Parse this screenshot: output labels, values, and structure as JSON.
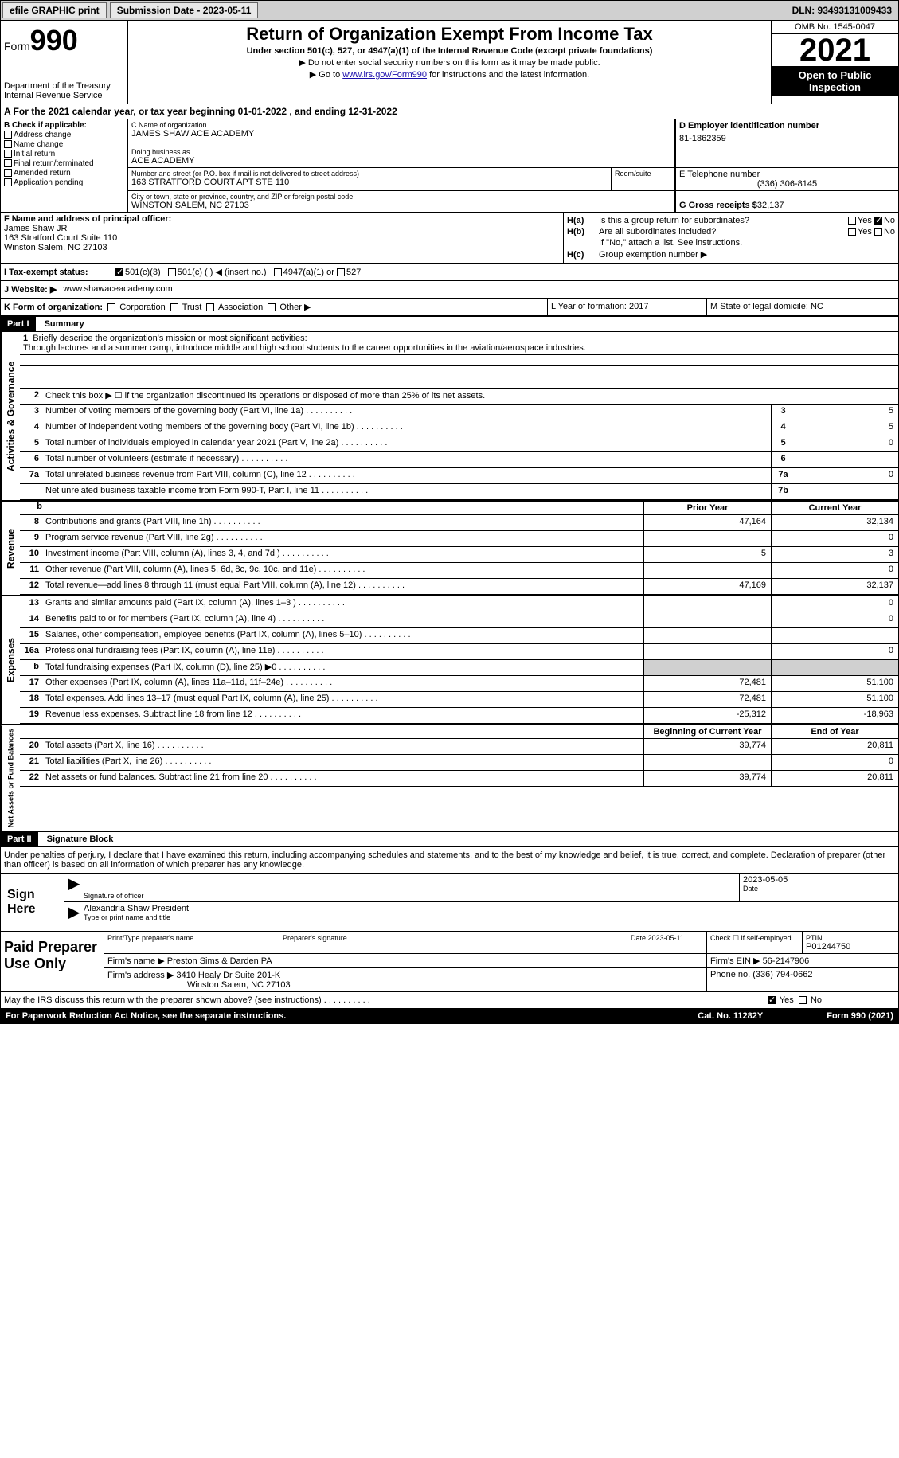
{
  "topbar": {
    "efile": "efile GRAPHIC print",
    "submission": "Submission Date - 2023-05-11",
    "dln": "DLN: 93493131009433"
  },
  "header": {
    "form_label": "Form",
    "form_num": "990",
    "title": "Return of Organization Exempt From Income Tax",
    "sub1": "Under section 501(c), 527, or 4947(a)(1) of the Internal Revenue Code (except private foundations)",
    "sub2": "▶ Do not enter social security numbers on this form as it may be made public.",
    "sub3_pre": "▶ Go to ",
    "sub3_link": "www.irs.gov/Form990",
    "sub3_post": " for instructions and the latest information.",
    "dept": "Department of the Treasury Internal Revenue Service",
    "omb": "OMB No. 1545-0047",
    "year": "2021",
    "inspection": "Open to Public Inspection"
  },
  "section_a": "A  For the 2021 calendar year, or tax year beginning 01-01-2022   , and ending 12-31-2022",
  "col_b": {
    "label": "B Check if applicable:",
    "items": [
      "Address change",
      "Name change",
      "Initial return",
      "Final return/terminated",
      "Amended return",
      "Application pending"
    ]
  },
  "col_c": {
    "name_lbl": "C Name of organization",
    "name": "JAMES SHAW ACE ACADEMY",
    "dba_lbl": "Doing business as",
    "dba": "ACE ACADEMY",
    "street_lbl": "Number and street (or P.O. box if mail is not delivered to street address)",
    "street": "163 STRATFORD COURT APT STE 110",
    "room_lbl": "Room/suite",
    "city_lbl": "City or town, state or province, country, and ZIP or foreign postal code",
    "city": "WINSTON SALEM, NC  27103"
  },
  "col_d": {
    "ein_lbl": "D Employer identification number",
    "ein": "81-1862359",
    "phone_lbl": "E Telephone number",
    "phone": "(336) 306-8145",
    "gross_lbl": "G Gross receipts $",
    "gross": " 32,137"
  },
  "col_f": {
    "label": "F  Name and address of principal officer:",
    "name": "James Shaw JR",
    "addr1": "163 Stratford Court Suite 110",
    "addr2": "Winston Salem, NC  27103"
  },
  "col_h": {
    "ha": "Is this a group return for subordinates?",
    "hb": "Are all subordinates included?",
    "hb_note": "If \"No,\" attach a list. See instructions.",
    "hc": "Group exemption number ▶"
  },
  "tax_exempt": {
    "label": "I   Tax-exempt status:",
    "opt1": "501(c)(3)",
    "opt2": "501(c) (  ) ◀ (insert no.)",
    "opt3": "4947(a)(1) or",
    "opt4": "527"
  },
  "website": {
    "label": "J  Website: ▶",
    "value": "www.shawaceacademy.com"
  },
  "k_row": {
    "k": "K Form of organization:",
    "opts": [
      "Corporation",
      "Trust",
      "Association",
      "Other ▶"
    ],
    "l": "L Year of formation: 2017",
    "m": "M State of legal domicile: NC"
  },
  "part1": {
    "header": "Part I",
    "title": "Summary",
    "q1": "Briefly describe the organization's mission or most significant activities:",
    "mission": "Through lectures and a summer camp, introduce middle and high school students to the career opportunities in the aviation/aerospace industries.",
    "q2": "Check this box ▶ ☐  if the organization discontinued its operations or disposed of more than 25% of its net assets.",
    "activities_label": "Activities & Governance",
    "revenue_label": "Revenue",
    "expenses_label": "Expenses",
    "netassets_label": "Net Assets or Fund Balances",
    "prior_year": "Prior Year",
    "current_year": "Current Year",
    "begin_year": "Beginning of Current Year",
    "end_year": "End of Year",
    "lines_gov": [
      {
        "n": "3",
        "d": "Number of voting members of the governing body (Part VI, line 1a)",
        "box": "3",
        "v": "5"
      },
      {
        "n": "4",
        "d": "Number of independent voting members of the governing body (Part VI, line 1b)",
        "box": "4",
        "v": "5"
      },
      {
        "n": "5",
        "d": "Total number of individuals employed in calendar year 2021 (Part V, line 2a)",
        "box": "5",
        "v": "0"
      },
      {
        "n": "6",
        "d": "Total number of volunteers (estimate if necessary)",
        "box": "6",
        "v": ""
      },
      {
        "n": "7a",
        "d": "Total unrelated business revenue from Part VIII, column (C), line 12",
        "box": "7a",
        "v": "0"
      },
      {
        "n": "",
        "d": "Net unrelated business taxable income from Form 990-T, Part I, line 11",
        "box": "7b",
        "v": ""
      }
    ],
    "lines_rev": [
      {
        "n": "8",
        "d": "Contributions and grants (Part VIII, line 1h)",
        "p": "47,164",
        "c": "32,134"
      },
      {
        "n": "9",
        "d": "Program service revenue (Part VIII, line 2g)",
        "p": "",
        "c": "0"
      },
      {
        "n": "10",
        "d": "Investment income (Part VIII, column (A), lines 3, 4, and 7d )",
        "p": "5",
        "c": "3"
      },
      {
        "n": "11",
        "d": "Other revenue (Part VIII, column (A), lines 5, 6d, 8c, 9c, 10c, and 11e)",
        "p": "",
        "c": "0"
      },
      {
        "n": "12",
        "d": "Total revenue—add lines 8 through 11 (must equal Part VIII, column (A), line 12)",
        "p": "47,169",
        "c": "32,137"
      }
    ],
    "lines_exp": [
      {
        "n": "13",
        "d": "Grants and similar amounts paid (Part IX, column (A), lines 1–3 )",
        "p": "",
        "c": "0"
      },
      {
        "n": "14",
        "d": "Benefits paid to or for members (Part IX, column (A), line 4)",
        "p": "",
        "c": "0"
      },
      {
        "n": "15",
        "d": "Salaries, other compensation, employee benefits (Part IX, column (A), lines 5–10)",
        "p": "",
        "c": ""
      },
      {
        "n": "16a",
        "d": "Professional fundraising fees (Part IX, column (A), line 11e)",
        "p": "",
        "c": "0"
      },
      {
        "n": "b",
        "d": "Total fundraising expenses (Part IX, column (D), line 25) ▶0",
        "p": "shade",
        "c": "shade"
      },
      {
        "n": "17",
        "d": "Other expenses (Part IX, column (A), lines 11a–11d, 11f–24e)",
        "p": "72,481",
        "c": "51,100"
      },
      {
        "n": "18",
        "d": "Total expenses. Add lines 13–17 (must equal Part IX, column (A), line 25)",
        "p": "72,481",
        "c": "51,100"
      },
      {
        "n": "19",
        "d": "Revenue less expenses. Subtract line 18 from line 12",
        "p": "-25,312",
        "c": "-18,963"
      }
    ],
    "lines_net": [
      {
        "n": "20",
        "d": "Total assets (Part X, line 16)",
        "p": "39,774",
        "c": "20,811"
      },
      {
        "n": "21",
        "d": "Total liabilities (Part X, line 26)",
        "p": "",
        "c": "0"
      },
      {
        "n": "22",
        "d": "Net assets or fund balances. Subtract line 21 from line 20",
        "p": "39,774",
        "c": "20,811"
      }
    ]
  },
  "part2": {
    "header": "Part II",
    "title": "Signature Block",
    "declaration": "Under penalties of perjury, I declare that I have examined this return, including accompanying schedules and statements, and to the best of my knowledge and belief, it is true, correct, and complete. Declaration of preparer (other than officer) is based on all information of which preparer has any knowledge.",
    "sign_here": "Sign Here",
    "sig_officer": "Signature of officer",
    "sig_date": "2023-05-05",
    "date_lbl": "Date",
    "officer_name": "Alexandria Shaw  President",
    "type_name": "Type or print name and title",
    "paid": "Paid Preparer Use Only",
    "prep_name_lbl": "Print/Type preparer's name",
    "prep_sig_lbl": "Preparer's signature",
    "prep_date": "Date 2023-05-11",
    "check_if": "Check ☐ if self-employed",
    "ptin_lbl": "PTIN",
    "ptin": "P01244750",
    "firm_name_lbl": "Firm's name    ▶",
    "firm_name": "Preston Sims & Darden PA",
    "firm_ein_lbl": "Firm's EIN ▶",
    "firm_ein": "56-2147906",
    "firm_addr_lbl": "Firm's address ▶",
    "firm_addr1": "3410 Healy Dr Suite 201-K",
    "firm_addr2": "Winston Salem, NC  27103",
    "firm_phone_lbl": "Phone no.",
    "firm_phone": "(336) 794-0662",
    "discuss": "May the IRS discuss this return with the preparer shown above? (see instructions)"
  },
  "footer": {
    "paperwork": "For Paperwork Reduction Act Notice, see the separate instructions.",
    "cat": "Cat. No. 11282Y",
    "form": "Form 990 (2021)"
  }
}
